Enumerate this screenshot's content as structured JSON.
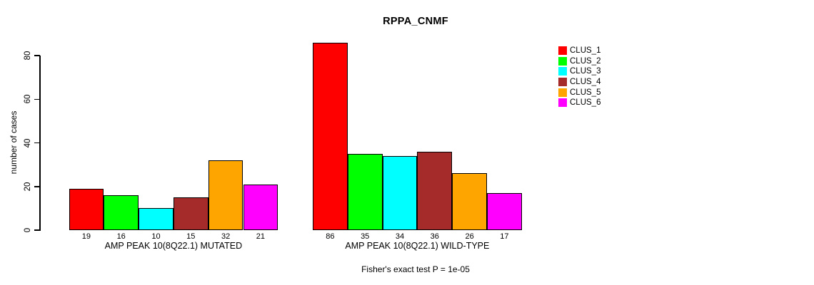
{
  "chart_data": {
    "type": "bar",
    "title": "RPPA_CNMF",
    "ylabel": "number of cases",
    "ylim": [
      0,
      86
    ],
    "yticks": [
      0,
      20,
      40,
      60,
      80
    ],
    "grid": false,
    "legend_position": "right",
    "categories": [
      "CLUS_1",
      "CLUS_2",
      "CLUS_3",
      "CLUS_4",
      "CLUS_5",
      "CLUS_6"
    ],
    "colors": [
      "#FF0000",
      "#00FF00",
      "#00FFFF",
      "#A52A2A",
      "#FFA500",
      "#FF00FF"
    ],
    "groups": [
      {
        "label": "AMP PEAK 10(8Q22.1) MUTATED",
        "values": [
          19,
          16,
          10,
          15,
          32,
          21
        ]
      },
      {
        "label": "AMP PEAK 10(8Q22.1) WILD-TYPE",
        "values": [
          86,
          35,
          34,
          36,
          26,
          17
        ]
      }
    ],
    "annotation": "Fisher's exact test P = 1e-05"
  }
}
